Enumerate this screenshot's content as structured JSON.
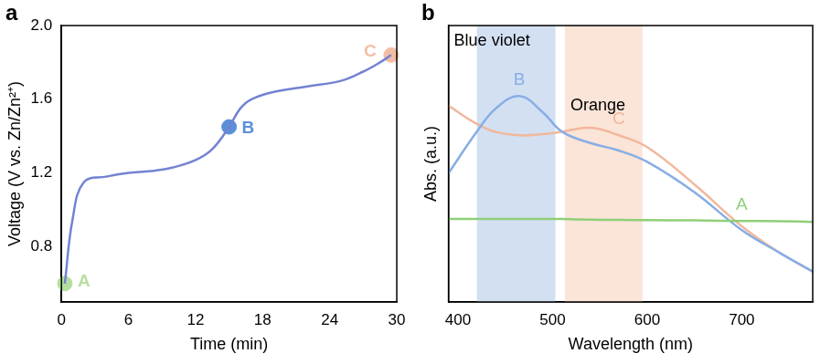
{
  "chart_data": [
    {
      "panel": "a",
      "type": "line",
      "color": "#7383d3",
      "x": [
        0.3,
        1.0,
        2.0,
        4.0,
        6.0,
        8.0,
        10.0,
        12.0,
        13.5,
        15.0,
        16.0,
        17.0,
        19.0,
        22.0,
        25.0,
        27.0,
        28.5,
        29.5
      ],
      "values": [
        0.6,
        0.95,
        1.15,
        1.18,
        1.2,
        1.21,
        1.23,
        1.27,
        1.33,
        1.45,
        1.55,
        1.6,
        1.64,
        1.67,
        1.7,
        1.75,
        1.8,
        1.84
      ],
      "points": [
        {
          "label": "A",
          "x": 0.3,
          "y": 0.6,
          "color": "#b6df9f"
        },
        {
          "label": "B",
          "x": 15.0,
          "y": 1.45,
          "color": "#5b8fd8"
        },
        {
          "label": "C",
          "x": 29.5,
          "y": 1.84,
          "color": "#f4bea6"
        }
      ],
      "xlabel": "Time (min)",
      "ylabel": "Voltage (V vs. Zn/Zn²⁺)",
      "xlim": [
        0,
        30
      ],
      "xticks": [
        0,
        6,
        12,
        18,
        24,
        30
      ],
      "ylim": [
        0.5,
        2.0
      ],
      "yticks": [
        0.8,
        1.2,
        1.6,
        {
          "value": 2.0,
          "label": "2.0"
        }
      ],
      "grid": false
    },
    {
      "panel": "b",
      "type": "line",
      "x": [
        390,
        420,
        440,
        465,
        490,
        510,
        540,
        570,
        600,
        650,
        700,
        740,
        775
      ],
      "series": [
        {
          "name": "A",
          "color": "#8fcf78",
          "values": [
            0.3,
            0.3,
            0.3,
            0.3,
            0.3,
            0.3,
            0.298,
            0.297,
            0.296,
            0.295,
            0.293,
            0.292,
            0.29
          ]
        },
        {
          "name": "B",
          "color": "#86aee5",
          "values": [
            0.466,
            0.616,
            0.7,
            0.745,
            0.685,
            0.616,
            0.575,
            0.548,
            0.507,
            0.397,
            0.26,
            0.178,
            0.11
          ]
        },
        {
          "name": "C",
          "color": "#f1b89c",
          "values": [
            0.71,
            0.644,
            0.615,
            0.603,
            0.607,
            0.616,
            0.63,
            0.603,
            0.56,
            0.425,
            0.274,
            0.178,
            0.11
          ]
        }
      ],
      "bands": [
        {
          "label": "Blue violet",
          "x": [
            420,
            503
          ],
          "color": "#d3e0f2"
        },
        {
          "label": "Orange",
          "x": [
            513,
            595
          ],
          "color": "#fbe4d8"
        }
      ],
      "xlabel": "Wavelength (nm)",
      "ylabel": "Abs. (a.u.)",
      "xlim": [
        390,
        775
      ],
      "xticks": [
        400,
        500,
        600,
        700
      ],
      "ylim": [
        0,
        1
      ],
      "tick_labels": "x",
      "grid": false
    }
  ]
}
